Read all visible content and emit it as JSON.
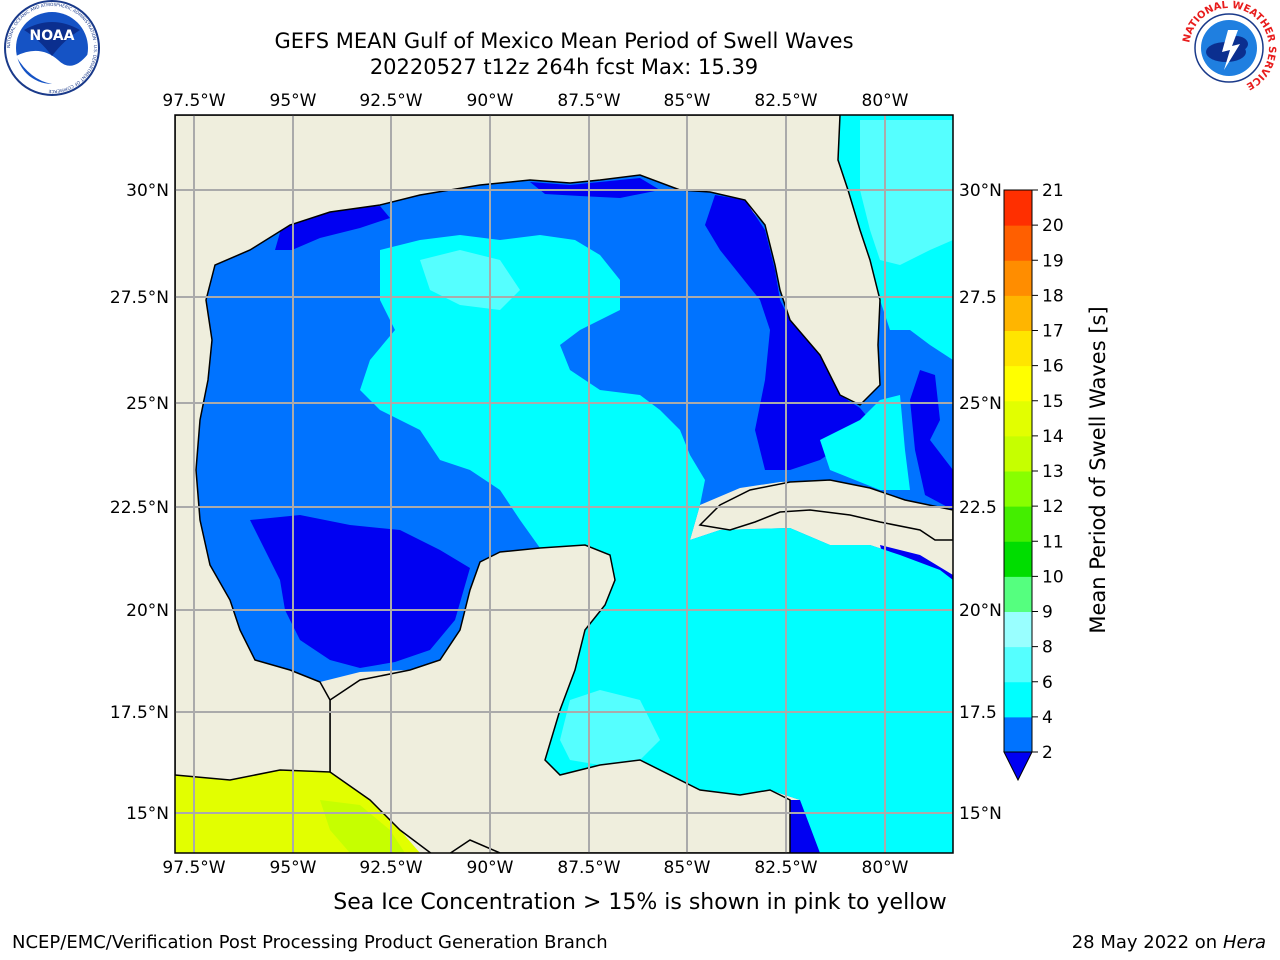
{
  "title": {
    "line1": "GEFS MEAN Gulf of Mexico Mean Period of Swell Waves",
    "line2": "20220527 t12z 264h fcst   Max: 15.39"
  },
  "logos": {
    "left": "NOAA",
    "left_ring_text": "NATIONAL OCEANIC AND ATMOSPHERIC ADMINISTRATION · U.S. DEPARTMENT OF COMMERCE",
    "right_ring_text": "NATIONAL WEATHER SERVICE"
  },
  "map": {
    "lon_ticks": [
      "97.5°W",
      "95°W",
      "92.5°W",
      "90°W",
      "87.5°W",
      "85°W",
      "82.5°W",
      "80°W"
    ],
    "lat_ticks_left": [
      "30°N",
      "27.5°N",
      "25°N",
      "22.5°N",
      "20°N",
      "17.5°N",
      "15°N"
    ],
    "lat_ticks_right": [
      "30°N",
      "27.5",
      "25°N",
      "22.5",
      "20°N",
      "17.5",
      "15°N"
    ],
    "colors": {
      "land": "#efeedd",
      "water_blue": "#0073ff",
      "water_dark": "#0000f2",
      "water_cyan": "#00ffff",
      "water_light": "#55ffff",
      "ice_yellow": "#e2ff00",
      "grid": "#aaaaaa"
    }
  },
  "colorbar": {
    "label": "Mean Period of Swell Waves [s]",
    "ticks": [
      "2",
      "4",
      "6",
      "8",
      "9",
      "10",
      "11",
      "12",
      "13",
      "14",
      "15",
      "16",
      "17",
      "18",
      "19",
      "20",
      "21"
    ],
    "colors": [
      "#0073ff",
      "#00ffff",
      "#55ffff",
      "#99ffff",
      "#55ff7f",
      "#00dd00",
      "#44ee00",
      "#88ff00",
      "#c6ff00",
      "#e2ff00",
      "#ffff00",
      "#ffe500",
      "#ffb500",
      "#ff8d00",
      "#ff5f00",
      "#ff2f00"
    ],
    "under_color": "#0000f2"
  },
  "caption": "Sea Ice Concentration > 15% is shown in pink to yellow",
  "footer": {
    "left": "NCEP/EMC/Verification Post Processing Product Generation Branch",
    "date": "28 May 2022 on",
    "machine": "Hera"
  }
}
